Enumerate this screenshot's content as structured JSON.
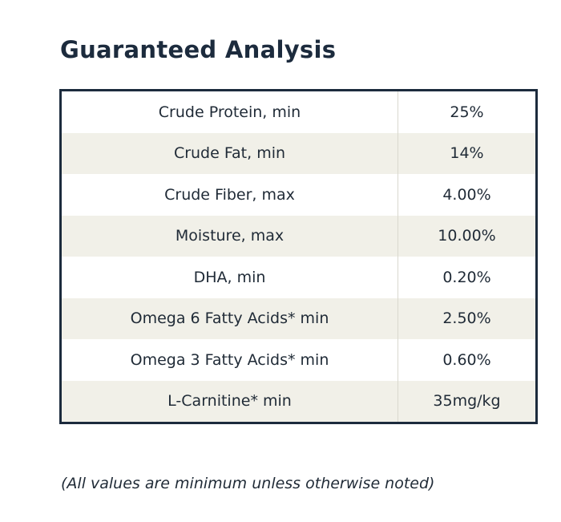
{
  "title": "Guaranteed Analysis",
  "rows": [
    {
      "label": "Crude Protein, min",
      "value": "25%"
    },
    {
      "label": "Crude Fat, min",
      "value": "14%"
    },
    {
      "label": "Crude Fiber, max",
      "value": "4.00%"
    },
    {
      "label": "Moisture, max",
      "value": "10.00%"
    },
    {
      "label": "DHA, min",
      "value": "0.20%"
    },
    {
      "label": "Omega 6 Fatty Acids* min",
      "value": "2.50%"
    },
    {
      "label": "Omega 3 Fatty Acids* min",
      "value": "0.60%"
    },
    {
      "label": "L-Carnitine* min",
      "value": "35mg/kg"
    }
  ],
  "footnote": "(All values are minimum unless otherwise noted)",
  "colors": {
    "title": "#1c2b3d",
    "border": "#1c2b3d",
    "row_shade": "#f1f0e8"
  }
}
